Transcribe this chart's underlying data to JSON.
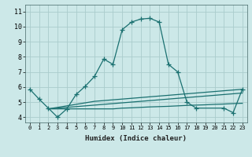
{
  "xlabel": "Humidex (Indice chaleur)",
  "background_color": "#cce8e8",
  "grid_color": "#aacccc",
  "line_color": "#1a7070",
  "xlim": [
    -0.5,
    23.5
  ],
  "ylim": [
    3.65,
    11.45
  ],
  "xticks": [
    0,
    1,
    2,
    3,
    4,
    5,
    6,
    7,
    8,
    9,
    10,
    11,
    12,
    13,
    14,
    15,
    16,
    17,
    18,
    19,
    20,
    21,
    22,
    23
  ],
  "yticks": [
    4,
    5,
    6,
    7,
    8,
    9,
    10,
    11
  ],
  "main_x": [
    0,
    1,
    2,
    3,
    4,
    5,
    6,
    7,
    8,
    9,
    10,
    11,
    12,
    13,
    14,
    15,
    16,
    17,
    18,
    21,
    22,
    23
  ],
  "main_y": [
    5.85,
    5.2,
    4.6,
    4.0,
    4.55,
    5.5,
    6.05,
    6.7,
    7.85,
    7.5,
    9.8,
    10.3,
    10.5,
    10.55,
    10.3,
    7.5,
    7.0,
    5.0,
    4.6,
    4.6,
    4.3,
    5.85
  ],
  "flat1_x": [
    2,
    3,
    4,
    5,
    6,
    7,
    8,
    9,
    10,
    11,
    12,
    13,
    14,
    15,
    16,
    17,
    18,
    19,
    20,
    21,
    22,
    23
  ],
  "flat1_y": [
    4.55,
    4.55,
    4.55,
    4.55,
    4.55,
    4.55,
    4.55,
    4.55,
    4.6,
    4.62,
    4.65,
    4.68,
    4.7,
    4.72,
    4.75,
    4.78,
    4.8,
    4.82,
    4.85,
    4.87,
    4.9,
    4.92
  ],
  "flat2_x": [
    2,
    3,
    4,
    5,
    6,
    7,
    8,
    9,
    10,
    11,
    12,
    13,
    14,
    15,
    16,
    17,
    18,
    19,
    20,
    21,
    22,
    23
  ],
  "flat2_y": [
    4.55,
    4.6,
    4.65,
    4.7,
    4.75,
    4.8,
    4.85,
    4.9,
    4.95,
    5.0,
    5.05,
    5.1,
    5.15,
    5.2,
    5.25,
    5.3,
    5.35,
    5.4,
    5.45,
    5.5,
    5.55,
    5.6
  ],
  "flat3_x": [
    2,
    3,
    4,
    5,
    6,
    7,
    8,
    9,
    10,
    11,
    12,
    13,
    14,
    15,
    16,
    17,
    18,
    19,
    20,
    21,
    22,
    23
  ],
  "flat3_y": [
    4.55,
    4.65,
    4.75,
    4.85,
    4.95,
    5.05,
    5.1,
    5.15,
    5.2,
    5.25,
    5.3,
    5.35,
    5.4,
    5.45,
    5.5,
    5.55,
    5.6,
    5.65,
    5.7,
    5.75,
    5.8,
    5.85
  ]
}
